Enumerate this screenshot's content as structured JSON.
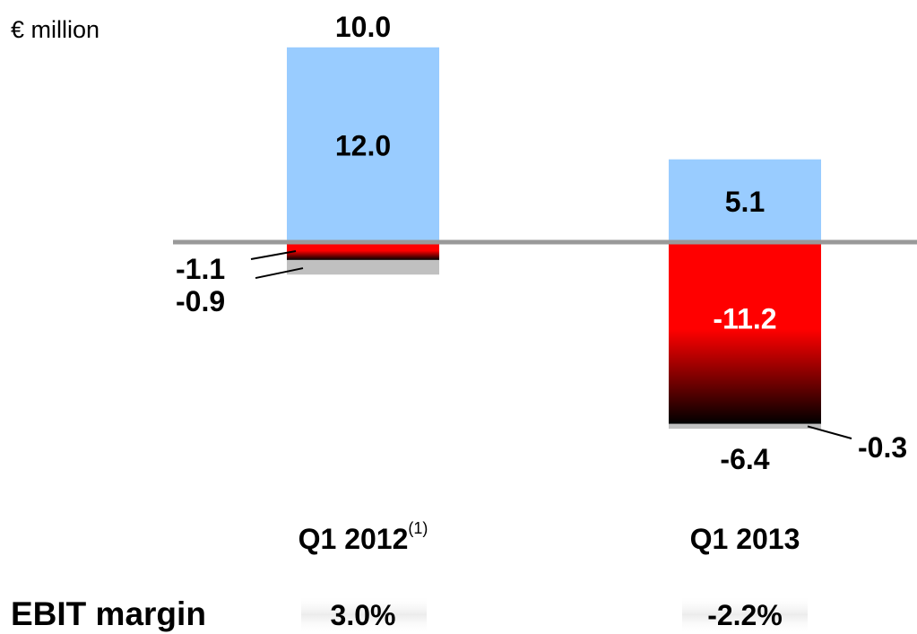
{
  "chart_data": {
    "type": "bar",
    "stacked": true,
    "unit_label": "€ million",
    "categories": [
      "Q1 2012",
      "Q1 2013"
    ],
    "category_footnote": [
      "(1)",
      ""
    ],
    "totals": [
      "10.0",
      "-6.4"
    ],
    "series": [
      {
        "values": [
          12.0,
          5.1
        ],
        "labels": [
          "12.0",
          "5.1"
        ],
        "color": "#99ccff"
      },
      {
        "values": [
          -1.1,
          -11.2
        ],
        "labels": [
          "-1.1",
          "-11.2"
        ],
        "color": "#ff0000",
        "gradient_to": "#000000"
      },
      {
        "values": [
          -0.9,
          -0.3
        ],
        "labels": [
          "-0.9",
          "-0.3"
        ],
        "color": "#c0c0c0"
      }
    ],
    "baseline_color": "#999999",
    "ylim": [
      -11.5,
      12.0
    ],
    "grid": false
  },
  "footer": {
    "label": "EBIT margin",
    "values": [
      "3.0%",
      "-2.2%"
    ],
    "badge_color": "#eeeeee"
  }
}
